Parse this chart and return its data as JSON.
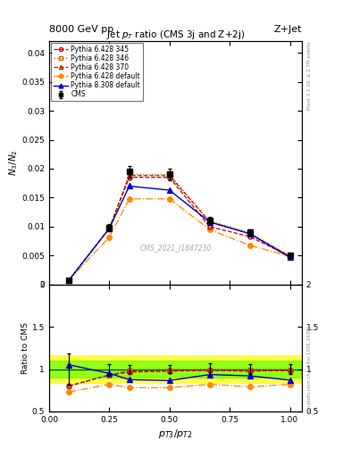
{
  "header_left": "8000 GeV pp",
  "header_right": "Z+Jet",
  "title_main": "Jet $p_T$ ratio (CMS 3j and Z+2j)",
  "ylabel_main": "$N_3$/$N_2$",
  "ylabel_ratio": "Ratio to CMS",
  "xlabel": "$p_{T3}/p_{T2}$",
  "watermark": "CMS_2021_I1847230",
  "right_label_top": "Rivet 3.1.10, ≥ 2.7M events",
  "right_label_bot": "mcplots.cern.ch [arXiv:1306.3436]",
  "x": [
    0.083,
    0.25,
    0.333,
    0.5,
    0.667,
    0.833,
    1.0
  ],
  "cms_y": [
    0.00083,
    0.0098,
    0.0195,
    0.019,
    0.011,
    0.009,
    0.005
  ],
  "cms_yerr": [
    0.00015,
    0.0006,
    0.001,
    0.001,
    0.0007,
    0.0005,
    0.0003
  ],
  "p6_345_y": [
    0.00083,
    0.0097,
    0.0185,
    0.0185,
    0.01,
    0.0083,
    0.0049
  ],
  "p6_346_y": [
    0.00083,
    0.0097,
    0.019,
    0.019,
    0.011,
    0.009,
    0.005
  ],
  "p6_370_y": [
    0.00083,
    0.0097,
    0.0188,
    0.0188,
    0.0108,
    0.0088,
    0.0049
  ],
  "p6_default_y": [
    0.00083,
    0.0082,
    0.0148,
    0.0148,
    0.0095,
    0.0068,
    0.0049
  ],
  "p8_default_y": [
    0.00083,
    0.0097,
    0.017,
    0.0163,
    0.0108,
    0.0088,
    0.0047
  ],
  "ratio_p6_345": [
    0.8,
    0.93,
    0.965,
    0.975,
    0.985,
    0.975,
    0.985
  ],
  "ratio_p6_346": [
    0.8,
    0.935,
    0.99,
    1.0,
    1.0,
    1.0,
    1.0
  ],
  "ratio_p6_370": [
    0.8,
    0.93,
    0.975,
    0.985,
    0.99,
    0.985,
    0.98
  ],
  "ratio_p6_default": [
    0.73,
    0.82,
    0.78,
    0.78,
    0.82,
    0.79,
    0.82
  ],
  "ratio_p8_default": [
    1.05,
    0.95,
    0.875,
    0.865,
    0.935,
    0.92,
    0.87
  ],
  "color_cms": "#000000",
  "color_p6_345": "#cc0000",
  "color_p6_346": "#bb6600",
  "color_p6_370": "#aa2200",
  "color_p6_default": "#ff8800",
  "color_p8_default": "#0000cc",
  "ylim_main": [
    0.0,
    0.042
  ],
  "ylim_ratio": [
    0.5,
    2.0
  ],
  "xlim": [
    0.0,
    1.05
  ],
  "yticks_main": [
    0.0,
    0.005,
    0.01,
    0.015,
    0.02,
    0.025,
    0.03,
    0.035,
    0.04
  ],
  "yticks_ratio": [
    0.5,
    1.0,
    1.5,
    2.0
  ],
  "xticks": [
    0.0,
    0.25,
    0.5,
    0.75,
    1.0
  ]
}
